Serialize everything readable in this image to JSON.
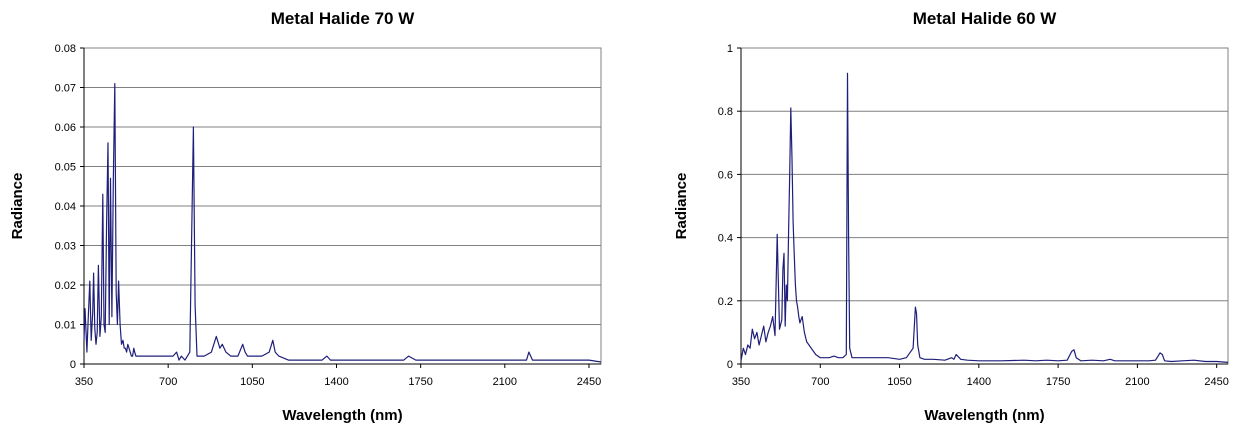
{
  "chart_data": [
    {
      "type": "line",
      "title": "Metal Halide 70 W",
      "xlabel": "Wavelength (nm)",
      "ylabel": "Radiance",
      "xlim": [
        350,
        2500
      ],
      "ylim": [
        0,
        0.08
      ],
      "xticks": [
        350,
        700,
        1050,
        1400,
        1750,
        2100,
        2450
      ],
      "yticks": [
        0,
        0.01,
        0.02,
        0.03,
        0.04,
        0.05,
        0.06,
        0.07,
        0.08
      ],
      "xtick_labels": [
        "350",
        "700",
        "1050",
        "1400",
        "1750",
        "2100",
        "2450"
      ],
      "ytick_labels": [
        "0",
        "0.01",
        "0.02",
        "0.03",
        "0.04",
        "0.05",
        "0.06",
        "0.07",
        "0.08"
      ],
      "grid": "horizontal",
      "line_color": "#1f1f7a",
      "series": [
        {
          "x": [
            350,
            354,
            358,
            362,
            368,
            374,
            380,
            386,
            390,
            395,
            400,
            405,
            410,
            416,
            422,
            428,
            433,
            438,
            444,
            450,
            455,
            460,
            466,
            472,
            478,
            484,
            489,
            494,
            500,
            506,
            512,
            517,
            522,
            527,
            532,
            537,
            542,
            547,
            552,
            557,
            561,
            566,
            572,
            578,
            584,
            590,
            596,
            602,
            608,
            614,
            620,
            625,
            630,
            635,
            640,
            648,
            656,
            664,
            672,
            680,
            690,
            700,
            720,
            735,
            745,
            755,
            770,
            790,
            805,
            812,
            820,
            830,
            850,
            880,
            900,
            915,
            925,
            940,
            960,
            990,
            1010,
            1020,
            1030,
            1060,
            1090,
            1120,
            1135,
            1145,
            1160,
            1200,
            1250,
            1300,
            1340,
            1360,
            1375,
            1400,
            1450,
            1500,
            1520,
            1560,
            1620,
            1680,
            1700,
            1730,
            1760,
            1800,
            1840,
            1880,
            1950,
            2050,
            2150,
            2190,
            2200,
            2215,
            2250,
            2300,
            2350,
            2400,
            2450,
            2500
          ],
          "y": [
            0.006,
            0.014,
            0.009,
            0.003,
            0.012,
            0.021,
            0.006,
            0.013,
            0.023,
            0.009,
            0.005,
            0.008,
            0.025,
            0.007,
            0.012,
            0.043,
            0.01,
            0.008,
            0.036,
            0.056,
            0.01,
            0.047,
            0.012,
            0.046,
            0.071,
            0.018,
            0.01,
            0.021,
            0.01,
            0.005,
            0.006,
            0.004,
            0.004,
            0.003,
            0.005,
            0.004,
            0.003,
            0.002,
            0.002,
            0.004,
            0.003,
            0.002,
            0.002,
            0.002,
            0.002,
            0.002,
            0.002,
            0.002,
            0.002,
            0.002,
            0.002,
            0.002,
            0.002,
            0.002,
            0.002,
            0.002,
            0.002,
            0.002,
            0.002,
            0.002,
            0.002,
            0.002,
            0.002,
            0.003,
            0.001,
            0.002,
            0.001,
            0.003,
            0.06,
            0.015,
            0.002,
            0.002,
            0.002,
            0.003,
            0.007,
            0.004,
            0.005,
            0.003,
            0.002,
            0.002,
            0.005,
            0.003,
            0.002,
            0.002,
            0.002,
            0.003,
            0.006,
            0.003,
            0.002,
            0.001,
            0.001,
            0.001,
            0.001,
            0.002,
            0.001,
            0.001,
            0.001,
            0.001,
            0.001,
            0.001,
            0.001,
            0.001,
            0.002,
            0.001,
            0.001,
            0.001,
            0.001,
            0.001,
            0.001,
            0.001,
            0.001,
            0.001,
            0.003,
            0.001,
            0.001,
            0.001,
            0.001,
            0.001,
            0.001,
            0.0005
          ]
        }
      ]
    },
    {
      "type": "line",
      "title": "Metal Halide 60 W",
      "xlabel": "Wavelength (nm)",
      "ylabel": "Radiance",
      "xlim": [
        350,
        2500
      ],
      "ylim": [
        0,
        1
      ],
      "xticks": [
        350,
        700,
        1050,
        1400,
        1750,
        2100,
        2450
      ],
      "yticks": [
        0,
        0.2,
        0.4,
        0.6,
        0.8,
        1
      ],
      "xtick_labels": [
        "350",
        "700",
        "1050",
        "1400",
        "1750",
        "2100",
        "2450"
      ],
      "ytick_labels": [
        "0",
        "0.2",
        "0.4",
        "0.6",
        "0.8",
        "1"
      ],
      "grid": "horizontal",
      "line_color": "#1f1f7a",
      "series": [
        {
          "x": [
            350,
            360,
            370,
            380,
            390,
            400,
            410,
            420,
            430,
            440,
            450,
            460,
            470,
            480,
            490,
            500,
            510,
            520,
            530,
            535,
            540,
            545,
            550,
            555,
            560,
            565,
            570,
            575,
            580,
            585,
            590,
            595,
            600,
            605,
            610,
            615,
            620,
            630,
            640,
            650,
            660,
            670,
            680,
            690,
            700,
            720,
            740,
            760,
            780,
            800,
            815,
            820,
            825,
            830,
            840,
            860,
            900,
            950,
            1000,
            1050,
            1080,
            1110,
            1120,
            1125,
            1130,
            1140,
            1160,
            1200,
            1250,
            1280,
            1290,
            1300,
            1320,
            1350,
            1400,
            1500,
            1600,
            1650,
            1700,
            1750,
            1790,
            1810,
            1820,
            1830,
            1850,
            1900,
            1950,
            1980,
            2000,
            2050,
            2100,
            2150,
            2180,
            2200,
            2210,
            2220,
            2250,
            2300,
            2350,
            2400,
            2450,
            2500
          ],
          "y": [
            0.01,
            0.05,
            0.03,
            0.06,
            0.05,
            0.11,
            0.08,
            0.1,
            0.06,
            0.09,
            0.12,
            0.07,
            0.1,
            0.12,
            0.15,
            0.09,
            0.41,
            0.11,
            0.14,
            0.3,
            0.35,
            0.12,
            0.25,
            0.2,
            0.42,
            0.6,
            0.81,
            0.65,
            0.45,
            0.35,
            0.25,
            0.2,
            0.18,
            0.15,
            0.13,
            0.14,
            0.15,
            0.1,
            0.07,
            0.06,
            0.05,
            0.04,
            0.03,
            0.025,
            0.02,
            0.02,
            0.02,
            0.025,
            0.02,
            0.02,
            0.03,
            0.92,
            0.4,
            0.05,
            0.02,
            0.02,
            0.02,
            0.02,
            0.02,
            0.015,
            0.02,
            0.05,
            0.18,
            0.16,
            0.06,
            0.02,
            0.015,
            0.015,
            0.012,
            0.02,
            0.015,
            0.03,
            0.015,
            0.012,
            0.01,
            0.01,
            0.012,
            0.01,
            0.012,
            0.01,
            0.012,
            0.04,
            0.045,
            0.02,
            0.01,
            0.012,
            0.01,
            0.015,
            0.01,
            0.01,
            0.01,
            0.01,
            0.012,
            0.035,
            0.03,
            0.01,
            0.008,
            0.01,
            0.012,
            0.008,
            0.008,
            0.005
          ]
        }
      ]
    }
  ]
}
